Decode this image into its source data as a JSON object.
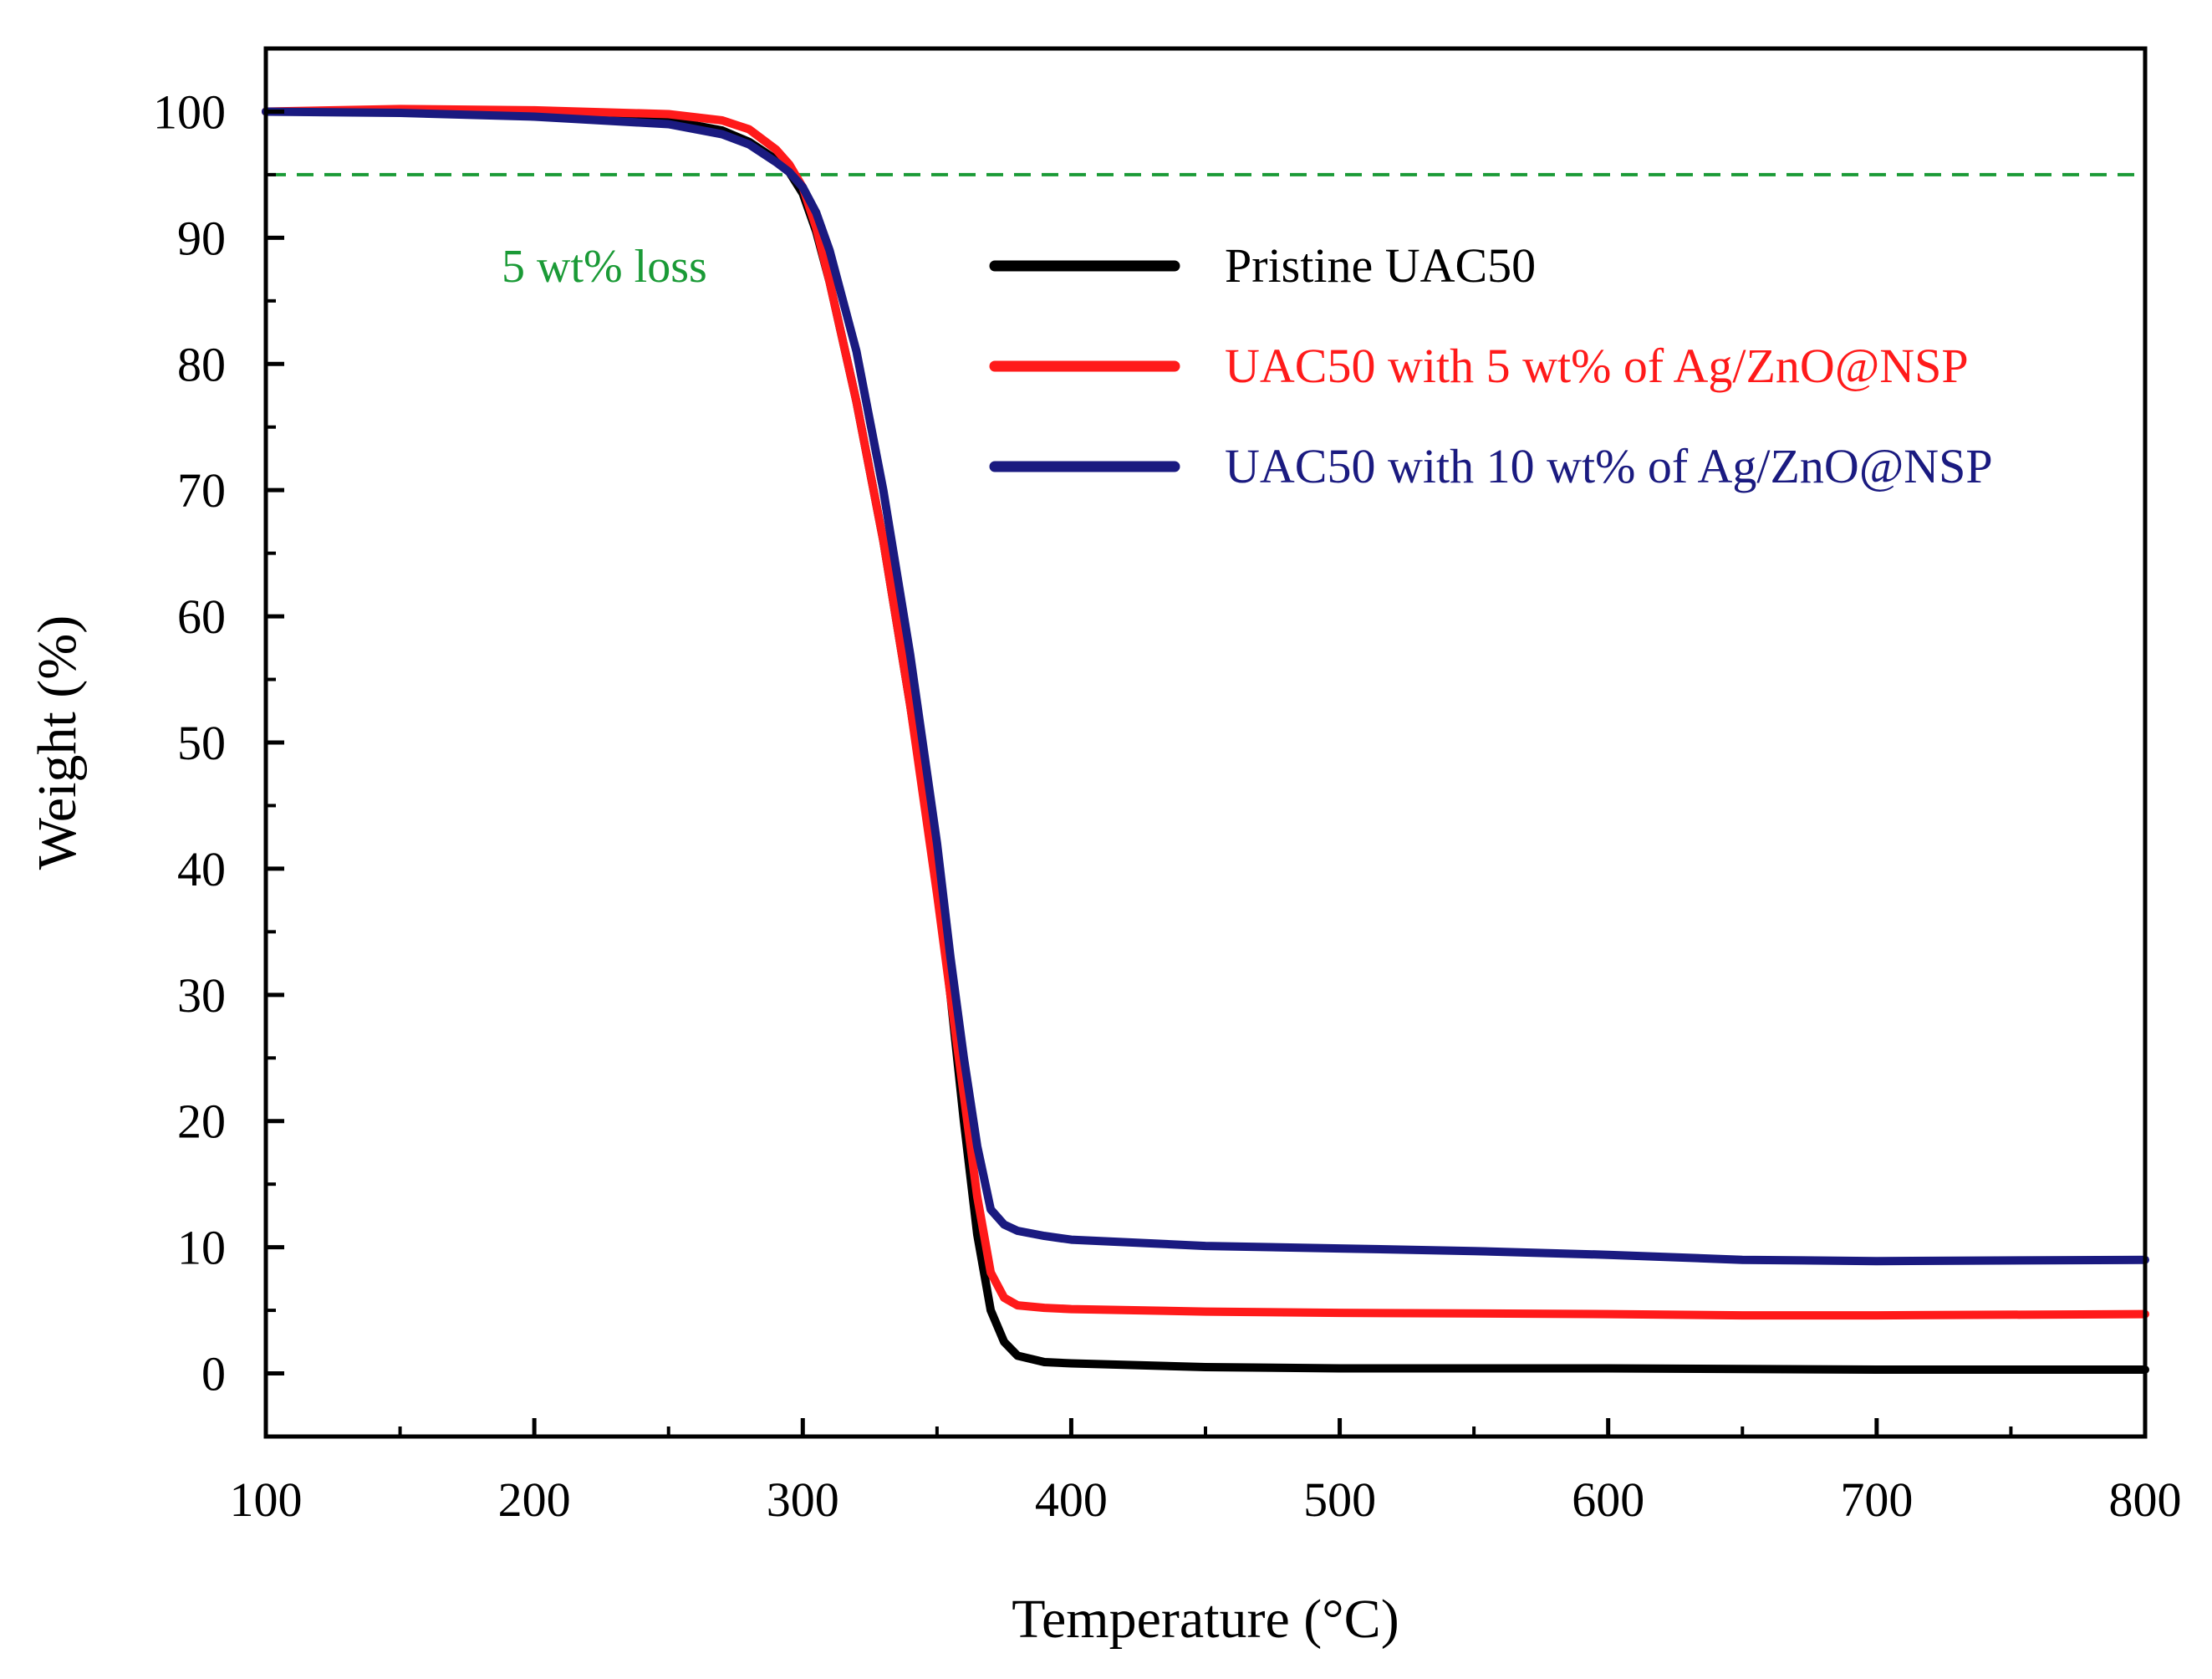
{
  "chart_data": {
    "type": "line",
    "title": "",
    "xlabel": "Temperature (°C)",
    "ylabel": "Weight (%)",
    "xlim": [
      100,
      800
    ],
    "ylim": [
      -5,
      105
    ],
    "xticks": [
      100,
      200,
      300,
      400,
      500,
      600,
      700,
      800
    ],
    "yticks": [
      0,
      10,
      20,
      30,
      40,
      50,
      60,
      70,
      80,
      90,
      100
    ],
    "legend_position": "top-right",
    "threshold": {
      "y": 95,
      "label": "5 wt% loss",
      "color": "#1a9a36",
      "style": "dashed"
    },
    "series": [
      {
        "name": "Pristine UAC50",
        "color": "#000000",
        "x": [
          100,
          150,
          200,
          250,
          270,
          280,
          290,
          295,
          300,
          305,
          310,
          320,
          330,
          340,
          350,
          355,
          360,
          365,
          370,
          375,
          380,
          390,
          400,
          450,
          500,
          600,
          700,
          800
        ],
        "y": [
          100,
          100,
          99.8,
          99.3,
          98.5,
          97.6,
          96.2,
          95.2,
          93.5,
          90.5,
          86.5,
          77,
          66,
          53,
          39,
          30,
          20,
          11,
          5,
          2.5,
          1.4,
          0.9,
          0.8,
          0.5,
          0.4,
          0.4,
          0.3,
          0.3
        ]
      },
      {
        "name": "UAC50 with 5 wt% of Ag/ZnO@NSP",
        "color": "#ff1a1a",
        "x": [
          100,
          150,
          200,
          250,
          270,
          280,
          290,
          295,
          300,
          305,
          310,
          320,
          330,
          340,
          350,
          355,
          360,
          365,
          370,
          375,
          380,
          390,
          400,
          450,
          500,
          600,
          650,
          700,
          800
        ],
        "y": [
          100,
          100.2,
          100.1,
          99.8,
          99.3,
          98.6,
          97,
          95.8,
          94,
          90.8,
          86.5,
          77,
          66,
          53,
          38,
          30,
          22,
          14,
          8,
          6,
          5.4,
          5.2,
          5.1,
          4.9,
          4.8,
          4.7,
          4.6,
          4.6,
          4.7
        ]
      },
      {
        "name": "UAC50 with 10 wt% of Ag/ZnO@NSP",
        "color": "#1a1a80",
        "x": [
          100,
          150,
          200,
          250,
          270,
          280,
          290,
          295,
          300,
          305,
          310,
          320,
          330,
          340,
          350,
          355,
          360,
          365,
          370,
          375,
          380,
          390,
          400,
          450,
          500,
          550,
          600,
          650,
          700,
          800
        ],
        "y": [
          100,
          99.9,
          99.6,
          99,
          98.2,
          97.4,
          96,
          95.2,
          94,
          92,
          89,
          81,
          70,
          57,
          42,
          33,
          25,
          18,
          13,
          11.8,
          11.3,
          10.9,
          10.6,
          10.1,
          9.9,
          9.7,
          9.4,
          9.0,
          8.9,
          9.0
        ]
      }
    ]
  }
}
